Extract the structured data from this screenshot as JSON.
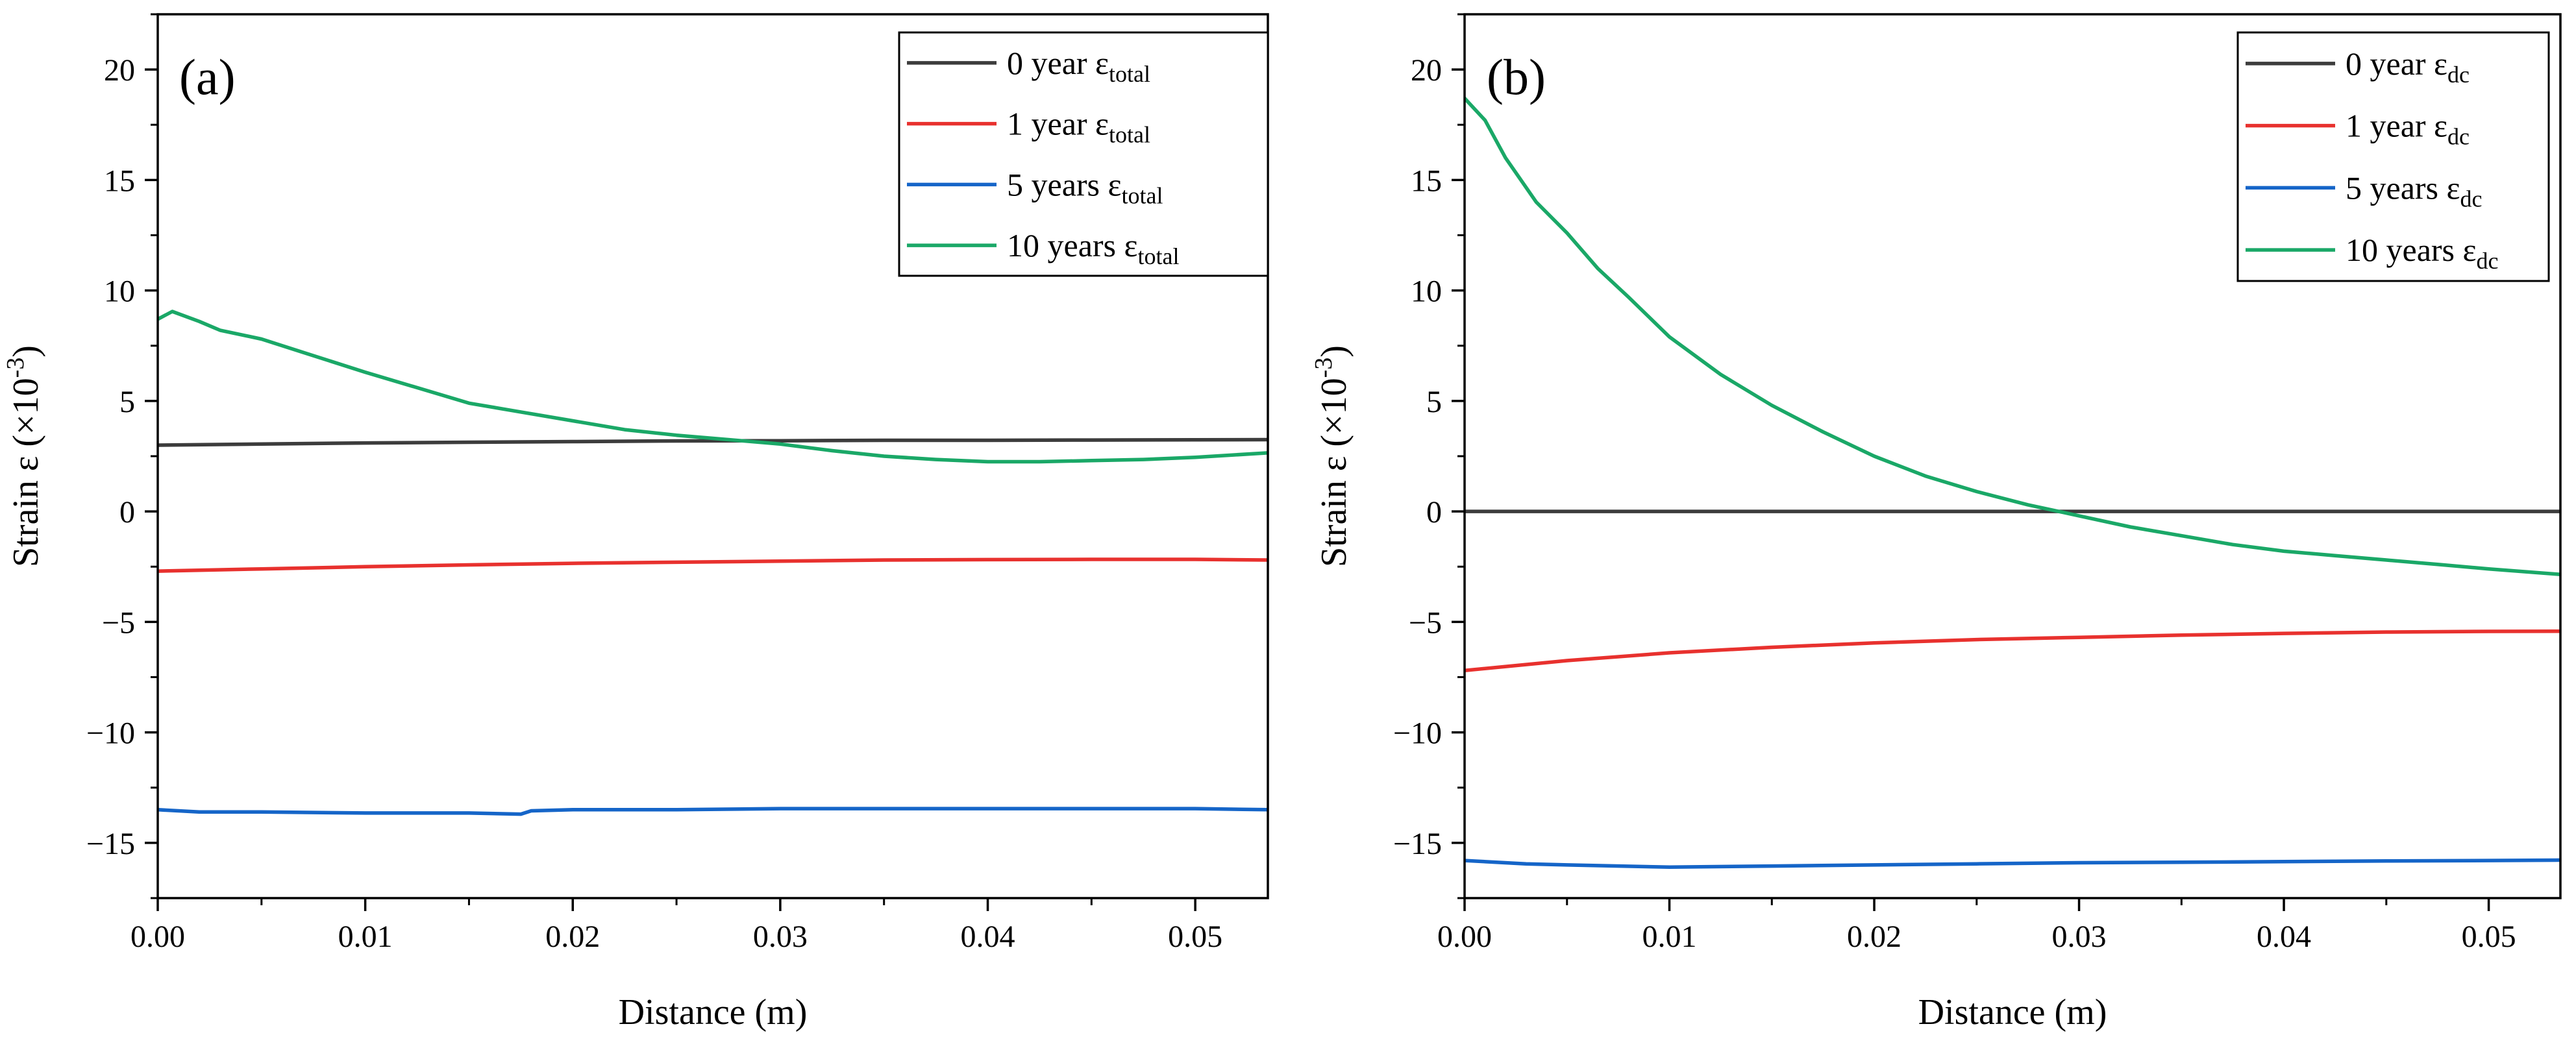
{
  "chart_data": [
    {
      "type": "line",
      "panel_label": "(a)",
      "xlabel": "Distance (m)",
      "ylabel": {
        "base": "Strain ε (×10",
        "sup": "-3",
        "end": ")"
      },
      "xlim": [
        0,
        0.0535
      ],
      "ylim": [
        -17.5,
        22.5
      ],
      "xticks": [
        0,
        0.01,
        0.02,
        0.03,
        0.04,
        0.05
      ],
      "xtick_labels": [
        "0.00",
        "0.01",
        "0.02",
        "0.03",
        "0.04",
        "0.05"
      ],
      "yticks": [
        -15,
        -10,
        -5,
        0,
        5,
        10,
        15,
        20
      ],
      "ytick_labels": [
        "−15",
        "−10",
        "−5",
        "0",
        "5",
        "10",
        "15",
        "20"
      ],
      "legend_position": "top-right",
      "series": [
        {
          "name": "0 year",
          "sub": "total",
          "color": "#3c3c3c",
          "x": [
            0,
            0.005,
            0.01,
            0.015,
            0.02,
            0.025,
            0.03,
            0.035,
            0.04,
            0.045,
            0.05,
            0.0535
          ],
          "y": [
            3.0,
            3.05,
            3.1,
            3.13,
            3.16,
            3.19,
            3.2,
            3.22,
            3.22,
            3.23,
            3.24,
            3.25
          ]
        },
        {
          "name": "1 year",
          "sub": "total",
          "color": "#e8312e",
          "x": [
            0,
            0.005,
            0.01,
            0.015,
            0.02,
            0.025,
            0.03,
            0.035,
            0.04,
            0.045,
            0.05,
            0.0535
          ],
          "y": [
            -2.7,
            -2.6,
            -2.5,
            -2.42,
            -2.35,
            -2.3,
            -2.25,
            -2.2,
            -2.18,
            -2.17,
            -2.17,
            -2.2
          ]
        },
        {
          "name": "5 years",
          "sub": "total",
          "color": "#1565c8",
          "x": [
            0,
            0.002,
            0.005,
            0.01,
            0.015,
            0.0175,
            0.018,
            0.02,
            0.025,
            0.03,
            0.035,
            0.04,
            0.045,
            0.05,
            0.0535
          ],
          "y": [
            -13.5,
            -13.6,
            -13.6,
            -13.65,
            -13.65,
            -13.7,
            -13.55,
            -13.5,
            -13.5,
            -13.45,
            -13.45,
            -13.45,
            -13.45,
            -13.45,
            -13.5
          ]
        },
        {
          "name": "10 years",
          "sub": "total",
          "color": "#1aa867",
          "x": [
            0,
            0.0007,
            0.002,
            0.003,
            0.005,
            0.007,
            0.01,
            0.0125,
            0.015,
            0.0175,
            0.02,
            0.0225,
            0.025,
            0.0275,
            0.03,
            0.0325,
            0.035,
            0.0375,
            0.04,
            0.0425,
            0.045,
            0.0475,
            0.05,
            0.0535
          ],
          "y": [
            8.7,
            9.05,
            8.6,
            8.2,
            7.8,
            7.2,
            6.3,
            5.6,
            4.9,
            4.5,
            4.1,
            3.7,
            3.45,
            3.25,
            3.05,
            2.75,
            2.5,
            2.35,
            2.25,
            2.25,
            2.3,
            2.35,
            2.45,
            2.65
          ]
        }
      ]
    },
    {
      "type": "line",
      "panel_label": "(b)",
      "xlabel": "Distance (m)",
      "ylabel": {
        "base": "Strain ε (×10",
        "sup": "-3",
        "end": ")"
      },
      "xlim": [
        0,
        0.0535
      ],
      "ylim": [
        -17.5,
        22.5
      ],
      "xticks": [
        0,
        0.01,
        0.02,
        0.03,
        0.04,
        0.05
      ],
      "xtick_labels": [
        "0.00",
        "0.01",
        "0.02",
        "0.03",
        "0.04",
        "0.05"
      ],
      "yticks": [
        -15,
        -10,
        -5,
        0,
        5,
        10,
        15,
        20
      ],
      "ytick_labels": [
        "−15",
        "−10",
        "−5",
        "0",
        "5",
        "10",
        "15",
        "20"
      ],
      "legend_position": "top-right",
      "series": [
        {
          "name": "0 year",
          "sub": "dc",
          "color": "#3c3c3c",
          "x": [
            0,
            0.01,
            0.02,
            0.03,
            0.04,
            0.05,
            0.0535
          ],
          "y": [
            0,
            0,
            0,
            0,
            0,
            0,
            0
          ]
        },
        {
          "name": "1 year",
          "sub": "dc",
          "color": "#e8312e",
          "x": [
            0,
            0.005,
            0.01,
            0.015,
            0.02,
            0.025,
            0.03,
            0.035,
            0.04,
            0.045,
            0.05,
            0.0535
          ],
          "y": [
            -7.2,
            -6.75,
            -6.4,
            -6.15,
            -5.95,
            -5.8,
            -5.7,
            -5.6,
            -5.52,
            -5.46,
            -5.43,
            -5.42
          ]
        },
        {
          "name": "5 years",
          "sub": "dc",
          "color": "#1565c8",
          "x": [
            0,
            0.003,
            0.005,
            0.01,
            0.015,
            0.02,
            0.025,
            0.03,
            0.035,
            0.04,
            0.045,
            0.05,
            0.0535
          ],
          "y": [
            -15.8,
            -15.95,
            -16.0,
            -16.1,
            -16.05,
            -16.0,
            -15.95,
            -15.9,
            -15.88,
            -15.85,
            -15.82,
            -15.8,
            -15.78
          ]
        },
        {
          "name": "10 years",
          "sub": "dc",
          "color": "#1aa867",
          "x": [
            0,
            0.001,
            0.002,
            0.0035,
            0.005,
            0.0065,
            0.008,
            0.01,
            0.0125,
            0.015,
            0.0175,
            0.02,
            0.0225,
            0.025,
            0.0275,
            0.03,
            0.0325,
            0.035,
            0.0375,
            0.04,
            0.0425,
            0.045,
            0.0475,
            0.05,
            0.0535
          ],
          "y": [
            18.7,
            17.7,
            16.0,
            14.0,
            12.6,
            11.0,
            9.7,
            7.9,
            6.2,
            4.8,
            3.6,
            2.5,
            1.6,
            0.9,
            0.3,
            -0.2,
            -0.7,
            -1.1,
            -1.5,
            -1.8,
            -2.0,
            -2.2,
            -2.4,
            -2.6,
            -2.85
          ]
        }
      ]
    }
  ]
}
